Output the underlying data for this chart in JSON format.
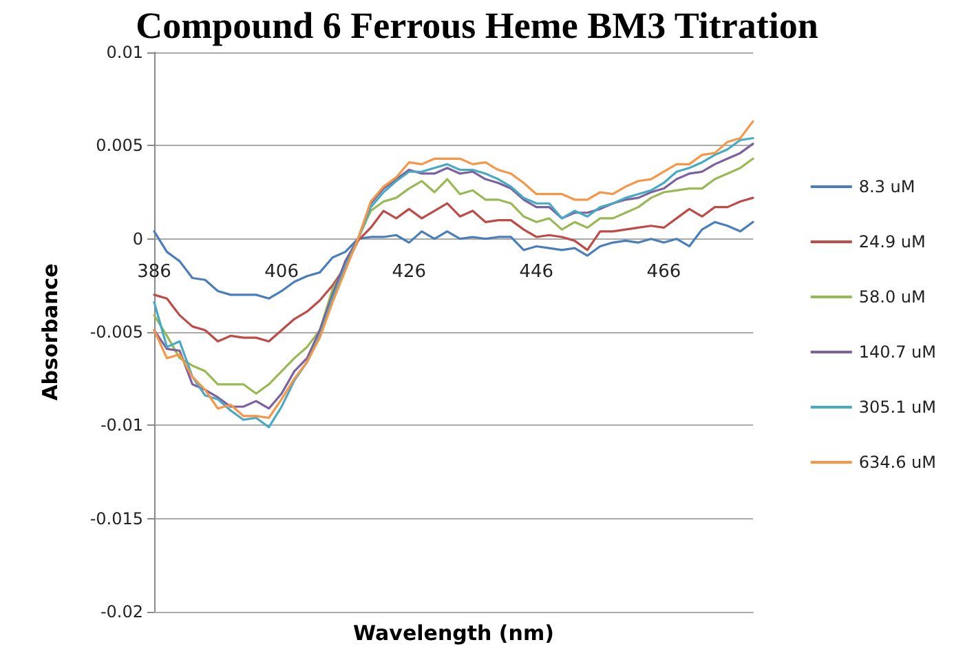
{
  "chart_data": {
    "type": "line",
    "title": "Compound 6 Ferrous Heme BM3 Titration",
    "xlabel": "Wavelength (nm)",
    "ylabel": "Absorbance",
    "x": [
      386,
      388,
      390,
      392,
      394,
      396,
      398,
      400,
      402,
      404,
      406,
      408,
      410,
      412,
      414,
      416,
      418,
      420,
      422,
      424,
      426,
      428,
      430,
      432,
      434,
      436,
      438,
      440,
      442,
      444,
      446,
      448,
      450,
      452,
      454,
      456,
      458,
      460,
      462,
      464,
      466,
      468,
      470,
      472,
      474,
      476,
      478,
      480
    ],
    "xlim": [
      386,
      480
    ],
    "xticks": [
      386,
      406,
      426,
      446,
      466
    ],
    "ylim": [
      -0.02,
      0.01
    ],
    "yticks": [
      -0.02,
      -0.015,
      -0.01,
      -0.005,
      0,
      0.005,
      0.01
    ],
    "grid": "y",
    "legend": "right",
    "marker": "none",
    "line_style": "solid",
    "series": [
      {
        "name": "8.3 uM",
        "color": "#4a7ebb",
        "values": [
          0.0004,
          -0.0007,
          -0.0012,
          -0.0021,
          -0.0022,
          -0.0028,
          -0.003,
          -0.003,
          -0.003,
          -0.0032,
          -0.0028,
          -0.0023,
          -0.002,
          -0.0018,
          -0.001,
          -0.0007,
          0,
          0.0001,
          0.0001,
          0.0002,
          -0.0002,
          0.0004,
          0,
          0.0004,
          0,
          0.0001,
          0,
          0.0001,
          0.0001,
          -0.0006,
          -0.0004,
          -0.0005,
          -0.0006,
          -0.0005,
          -0.0009,
          -0.0004,
          -0.0002,
          -0.0001,
          -0.0002,
          0,
          -0.0002,
          0,
          -0.0004,
          0.0005,
          0.0009,
          0.0007,
          0.0004,
          0.0009
        ]
      },
      {
        "name": "24.9 uM",
        "color": "#be4b48",
        "values": [
          -0.003,
          -0.0032,
          -0.0041,
          -0.0047,
          -0.0049,
          -0.0055,
          -0.0052,
          -0.0053,
          -0.0053,
          -0.0055,
          -0.0049,
          -0.0043,
          -0.0039,
          -0.0033,
          -0.0025,
          -0.0015,
          -0.0001,
          0.0006,
          0.0015,
          0.0011,
          0.0016,
          0.0011,
          0.0015,
          0.0019,
          0.0012,
          0.0015,
          0.0009,
          0.001,
          0.001,
          0.0005,
          0.0001,
          0.0002,
          0.0001,
          -0.0001,
          -0.0006,
          0.0004,
          0.0004,
          0.0005,
          0.0006,
          0.0007,
          0.0006,
          0.0011,
          0.0016,
          0.0012,
          0.0017,
          0.0017,
          0.002,
          0.0022
        ]
      },
      {
        "name": "58.0 uM",
        "color": "#98b954",
        "values": [
          -0.0041,
          -0.0052,
          -0.0064,
          -0.0068,
          -0.0071,
          -0.0078,
          -0.0078,
          -0.0078,
          -0.0083,
          -0.0078,
          -0.0071,
          -0.0064,
          -0.0058,
          -0.0049,
          -0.0027,
          -0.0015,
          0,
          0.0015,
          0.002,
          0.0022,
          0.0027,
          0.0031,
          0.0025,
          0.0032,
          0.0024,
          0.0026,
          0.0021,
          0.0021,
          0.0019,
          0.0012,
          0.0009,
          0.0011,
          0.0005,
          0.0009,
          0.0006,
          0.0011,
          0.0011,
          0.0014,
          0.0017,
          0.0022,
          0.0025,
          0.0026,
          0.0027,
          0.0027,
          0.0032,
          0.0035,
          0.0038,
          0.0043
        ]
      },
      {
        "name": "140.7 uM",
        "color": "#7d60a0",
        "values": [
          -0.0049,
          -0.0059,
          -0.006,
          -0.0078,
          -0.0081,
          -0.0085,
          -0.009,
          -0.009,
          -0.0087,
          -0.0091,
          -0.0083,
          -0.0071,
          -0.0064,
          -0.0049,
          -0.003,
          -0.0012,
          0,
          0.0019,
          0.0027,
          0.0032,
          0.0037,
          0.0035,
          0.0035,
          0.0038,
          0.0035,
          0.0036,
          0.0032,
          0.003,
          0.0027,
          0.0021,
          0.0017,
          0.0017,
          0.0011,
          0.0014,
          0.0014,
          0.0016,
          0.0019,
          0.0021,
          0.0022,
          0.0025,
          0.0027,
          0.0032,
          0.0035,
          0.0036,
          0.004,
          0.0043,
          0.0046,
          0.0051
        ]
      },
      {
        "name": "305.1 uM",
        "color": "#46aac5",
        "values": [
          -0.0034,
          -0.0058,
          -0.0055,
          -0.0074,
          -0.0084,
          -0.0086,
          -0.0092,
          -0.0097,
          -0.0096,
          -0.0101,
          -0.009,
          -0.0076,
          -0.0066,
          -0.0052,
          -0.0032,
          -0.0015,
          0,
          0.0017,
          0.0025,
          0.0031,
          0.0036,
          0.0036,
          0.0038,
          0.004,
          0.0037,
          0.0037,
          0.0035,
          0.0032,
          0.0028,
          0.0022,
          0.0019,
          0.0019,
          0.0011,
          0.0015,
          0.0012,
          0.0017,
          0.0019,
          0.0022,
          0.0024,
          0.0026,
          0.003,
          0.0036,
          0.0038,
          0.0041,
          0.0045,
          0.0048,
          0.0053,
          0.0054
        ]
      },
      {
        "name": "634.6 uM",
        "color": "#f79646",
        "values": [
          -0.0049,
          -0.0064,
          -0.0062,
          -0.0074,
          -0.0081,
          -0.0091,
          -0.0089,
          -0.0095,
          -0.0095,
          -0.0096,
          -0.0086,
          -0.0075,
          -0.0066,
          -0.0053,
          -0.0034,
          -0.0017,
          0,
          0.002,
          0.0028,
          0.0033,
          0.0041,
          0.004,
          0.0043,
          0.0043,
          0.0043,
          0.004,
          0.0041,
          0.0037,
          0.0035,
          0.003,
          0.0024,
          0.0024,
          0.0024,
          0.0021,
          0.0021,
          0.0025,
          0.0024,
          0.0028,
          0.0031,
          0.0032,
          0.0036,
          0.004,
          0.004,
          0.0045,
          0.0046,
          0.0052,
          0.0054,
          0.0063
        ]
      }
    ]
  }
}
